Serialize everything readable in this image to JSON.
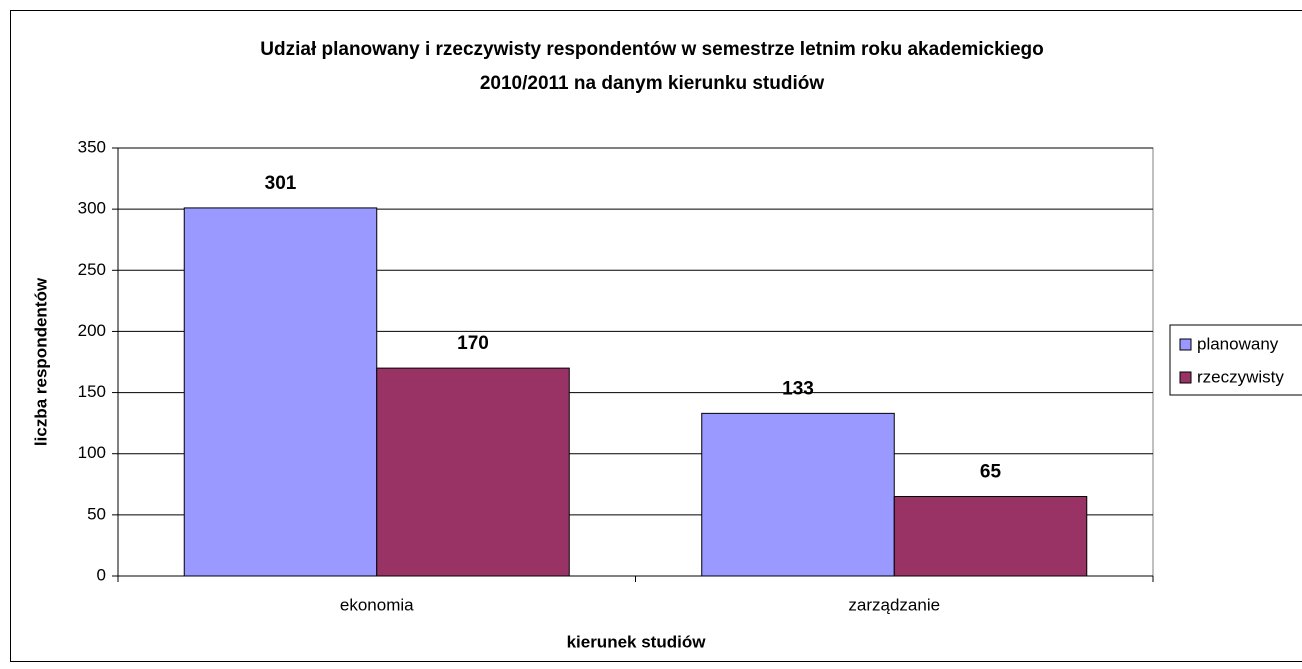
{
  "chart_data": {
    "type": "bar",
    "title": [
      "Udział planowany i rzeczywisty respondentów w semestrze letnim roku akademickiego",
      "2010/2011 na danym kierunku studiów"
    ],
    "x_label": "kierunek studiów",
    "y_label": "liczba respondentów",
    "categories": [
      "ekonomia",
      "zarządzanie"
    ],
    "series": [
      {
        "name": "planowany",
        "color": "#9999ff",
        "values": [
          301,
          133
        ]
      },
      {
        "name": "rzeczywisty",
        "color": "#993366",
        "values": [
          170,
          65
        ]
      }
    ],
    "ylim": [
      0,
      350
    ],
    "yticks": [
      0,
      50,
      100,
      150,
      200,
      250,
      300,
      350
    ],
    "grid": true,
    "legend": "right"
  }
}
